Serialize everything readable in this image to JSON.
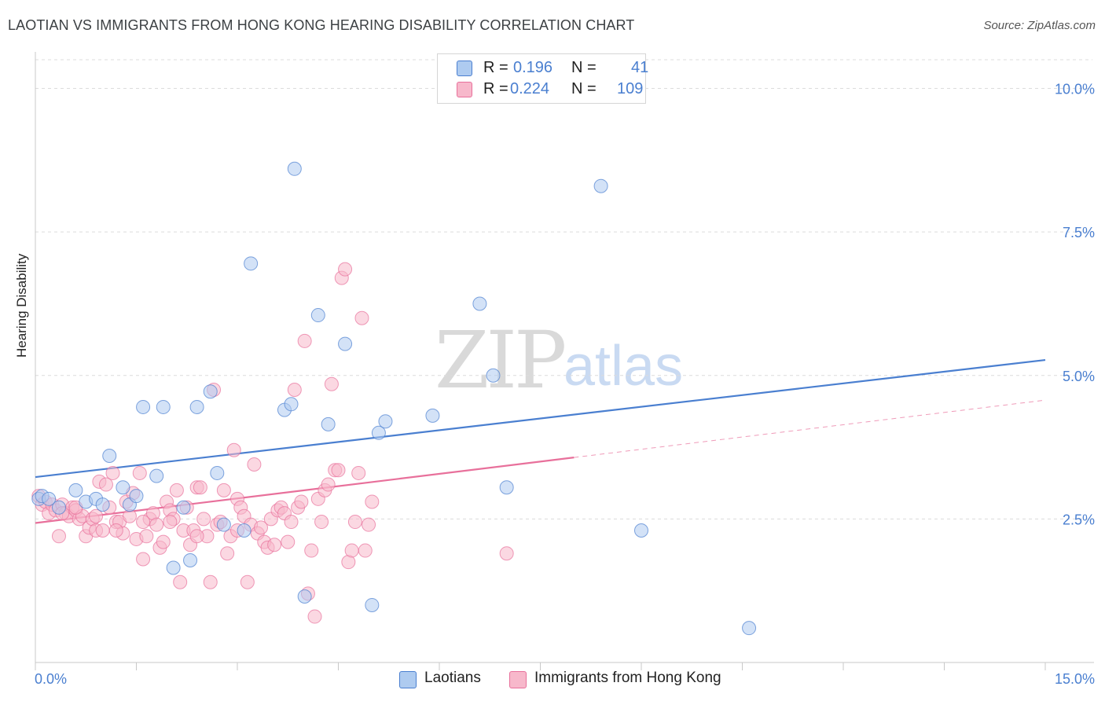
{
  "header": {
    "title": "LAOTIAN VS IMMIGRANTS FROM HONG KONG HEARING DISABILITY CORRELATION CHART",
    "source": "Source: ZipAtlas.com"
  },
  "watermark": {
    "part1": "ZIP",
    "part2": "atlas"
  },
  "legend": {
    "rows": [
      {
        "r_label": "R =",
        "r_value": "0.196",
        "n_label": "N =",
        "n_value": "41",
        "color": "#aecbf0"
      },
      {
        "r_label": "R =",
        "r_value": "0.224",
        "n_label": "N =",
        "n_value": "109",
        "color": "#f7b8cb"
      }
    ]
  },
  "bottom_legend": [
    {
      "label": "Laotians",
      "color": "#aecbf0"
    },
    {
      "label": "Immigrants from Hong Kong",
      "color": "#f7b8cb"
    }
  ],
  "chart_data": {
    "type": "scatter",
    "title": "LAOTIAN VS IMMIGRANTS FROM HONG KONG HEARING DISABILITY CORRELATION CHART",
    "xlabel": "",
    "ylabel": "Hearing Disability",
    "xlim": [
      0,
      15
    ],
    "ylim": [
      0,
      10.5
    ],
    "x_tick_labels": [
      "0.0%",
      "15.0%"
    ],
    "y_ticks": [
      2.5,
      5.0,
      7.5,
      10.0
    ],
    "y_tick_labels": [
      "2.5%",
      "5.0%",
      "7.5%",
      "10.0%"
    ],
    "grid": "horizontal dashed",
    "series": [
      {
        "name": "Laotians",
        "color": "#4a7fd0",
        "fill": "#aecbf0",
        "trend": {
          "x0": 0.0,
          "y0": 3.23,
          "x1": 15.0,
          "y1": 5.27,
          "dashed_from": null
        },
        "points": [
          [
            0.05,
            2.85
          ],
          [
            0.1,
            2.9
          ],
          [
            0.2,
            2.85
          ],
          [
            0.35,
            2.7
          ],
          [
            0.6,
            3.0
          ],
          [
            0.75,
            2.8
          ],
          [
            0.9,
            2.85
          ],
          [
            1.0,
            2.75
          ],
          [
            1.1,
            3.6
          ],
          [
            1.3,
            3.05
          ],
          [
            1.4,
            2.75
          ],
          [
            1.5,
            2.9
          ],
          [
            1.6,
            4.45
          ],
          [
            1.8,
            3.25
          ],
          [
            1.9,
            4.45
          ],
          [
            2.05,
            1.65
          ],
          [
            2.2,
            2.7
          ],
          [
            2.3,
            1.78
          ],
          [
            2.4,
            4.45
          ],
          [
            2.6,
            4.72
          ],
          [
            2.7,
            3.3
          ],
          [
            2.8,
            2.4
          ],
          [
            3.1,
            2.3
          ],
          [
            3.2,
            6.95
          ],
          [
            3.7,
            4.4
          ],
          [
            3.8,
            4.5
          ],
          [
            3.85,
            8.6
          ],
          [
            4.0,
            1.15
          ],
          [
            4.2,
            6.05
          ],
          [
            4.35,
            4.15
          ],
          [
            4.6,
            5.55
          ],
          [
            5.0,
            1.0
          ],
          [
            5.1,
            4.0
          ],
          [
            5.2,
            4.2
          ],
          [
            5.9,
            4.3
          ],
          [
            6.6,
            6.25
          ],
          [
            6.8,
            5.0
          ],
          [
            7.0,
            3.05
          ],
          [
            8.4,
            8.3
          ],
          [
            9.0,
            2.3
          ],
          [
            10.6,
            0.6
          ]
        ]
      },
      {
        "name": "Immigrants from Hong Kong",
        "color": "#e8709b",
        "fill": "#f7b8cb",
        "trend": {
          "x0": 0.0,
          "y0": 2.43,
          "x1": 15.0,
          "y1": 4.57,
          "dashed_from": 8.0
        },
        "points": [
          [
            0.05,
            2.9
          ],
          [
            0.1,
            2.75
          ],
          [
            0.15,
            2.8
          ],
          [
            0.2,
            2.6
          ],
          [
            0.25,
            2.75
          ],
          [
            0.3,
            2.65
          ],
          [
            0.35,
            2.2
          ],
          [
            0.4,
            2.75
          ],
          [
            0.45,
            2.6
          ],
          [
            0.5,
            2.55
          ],
          [
            0.55,
            2.7
          ],
          [
            0.6,
            2.65
          ],
          [
            0.65,
            2.5
          ],
          [
            0.7,
            2.55
          ],
          [
            0.75,
            2.2
          ],
          [
            0.8,
            2.35
          ],
          [
            0.85,
            2.5
          ],
          [
            0.9,
            2.3
          ],
          [
            0.95,
            3.15
          ],
          [
            1.0,
            2.3
          ],
          [
            1.05,
            3.1
          ],
          [
            1.1,
            2.7
          ],
          [
            1.15,
            3.3
          ],
          [
            1.2,
            2.45
          ],
          [
            1.25,
            2.45
          ],
          [
            1.3,
            2.25
          ],
          [
            1.35,
            2.8
          ],
          [
            1.4,
            2.55
          ],
          [
            1.45,
            2.95
          ],
          [
            1.5,
            2.15
          ],
          [
            1.55,
            3.3
          ],
          [
            1.6,
            1.8
          ],
          [
            1.65,
            2.2
          ],
          [
            1.7,
            2.5
          ],
          [
            1.75,
            2.6
          ],
          [
            1.8,
            2.4
          ],
          [
            1.85,
            2.0
          ],
          [
            1.9,
            2.1
          ],
          [
            1.95,
            2.8
          ],
          [
            2.0,
            2.65
          ],
          [
            2.05,
            2.5
          ],
          [
            2.1,
            3.0
          ],
          [
            2.15,
            1.4
          ],
          [
            2.2,
            2.3
          ],
          [
            2.25,
            2.7
          ],
          [
            2.3,
            2.05
          ],
          [
            2.35,
            2.3
          ],
          [
            2.4,
            3.05
          ],
          [
            2.45,
            3.05
          ],
          [
            2.5,
            2.5
          ],
          [
            2.55,
            2.2
          ],
          [
            2.6,
            1.4
          ],
          [
            2.65,
            4.75
          ],
          [
            2.7,
            2.4
          ],
          [
            2.75,
            2.45
          ],
          [
            2.8,
            3.0
          ],
          [
            2.85,
            1.9
          ],
          [
            2.9,
            2.2
          ],
          [
            2.95,
            3.7
          ],
          [
            3.0,
            2.85
          ],
          [
            3.05,
            2.7
          ],
          [
            3.1,
            2.55
          ],
          [
            3.15,
            1.4
          ],
          [
            3.2,
            2.4
          ],
          [
            3.25,
            3.45
          ],
          [
            3.3,
            2.25
          ],
          [
            3.35,
            2.35
          ],
          [
            3.4,
            2.1
          ],
          [
            3.45,
            2.0
          ],
          [
            3.5,
            2.5
          ],
          [
            3.55,
            2.05
          ],
          [
            3.6,
            2.65
          ],
          [
            3.65,
            2.7
          ],
          [
            3.7,
            2.6
          ],
          [
            3.75,
            2.1
          ],
          [
            3.8,
            2.45
          ],
          [
            3.85,
            4.75
          ],
          [
            3.9,
            2.7
          ],
          [
            3.95,
            2.8
          ],
          [
            4.0,
            5.6
          ],
          [
            4.05,
            1.2
          ],
          [
            4.1,
            1.95
          ],
          [
            4.15,
            0.8
          ],
          [
            4.2,
            2.85
          ],
          [
            4.25,
            2.45
          ],
          [
            4.3,
            3.0
          ],
          [
            4.35,
            3.1
          ],
          [
            4.4,
            4.85
          ],
          [
            4.45,
            3.35
          ],
          [
            4.5,
            3.35
          ],
          [
            4.55,
            6.7
          ],
          [
            4.6,
            6.85
          ],
          [
            4.65,
            1.75
          ],
          [
            4.7,
            1.95
          ],
          [
            4.75,
            2.45
          ],
          [
            4.8,
            3.3
          ],
          [
            4.85,
            6.0
          ],
          [
            4.9,
            1.95
          ],
          [
            4.95,
            2.4
          ],
          [
            5.0,
            2.8
          ],
          [
            2.0,
            2.45
          ],
          [
            1.6,
            2.45
          ],
          [
            1.2,
            2.3
          ],
          [
            0.9,
            2.55
          ],
          [
            0.4,
            2.6
          ],
          [
            0.6,
            2.7
          ],
          [
            2.4,
            2.2
          ],
          [
            3.0,
            2.3
          ],
          [
            7.0,
            1.9
          ]
        ]
      }
    ]
  }
}
